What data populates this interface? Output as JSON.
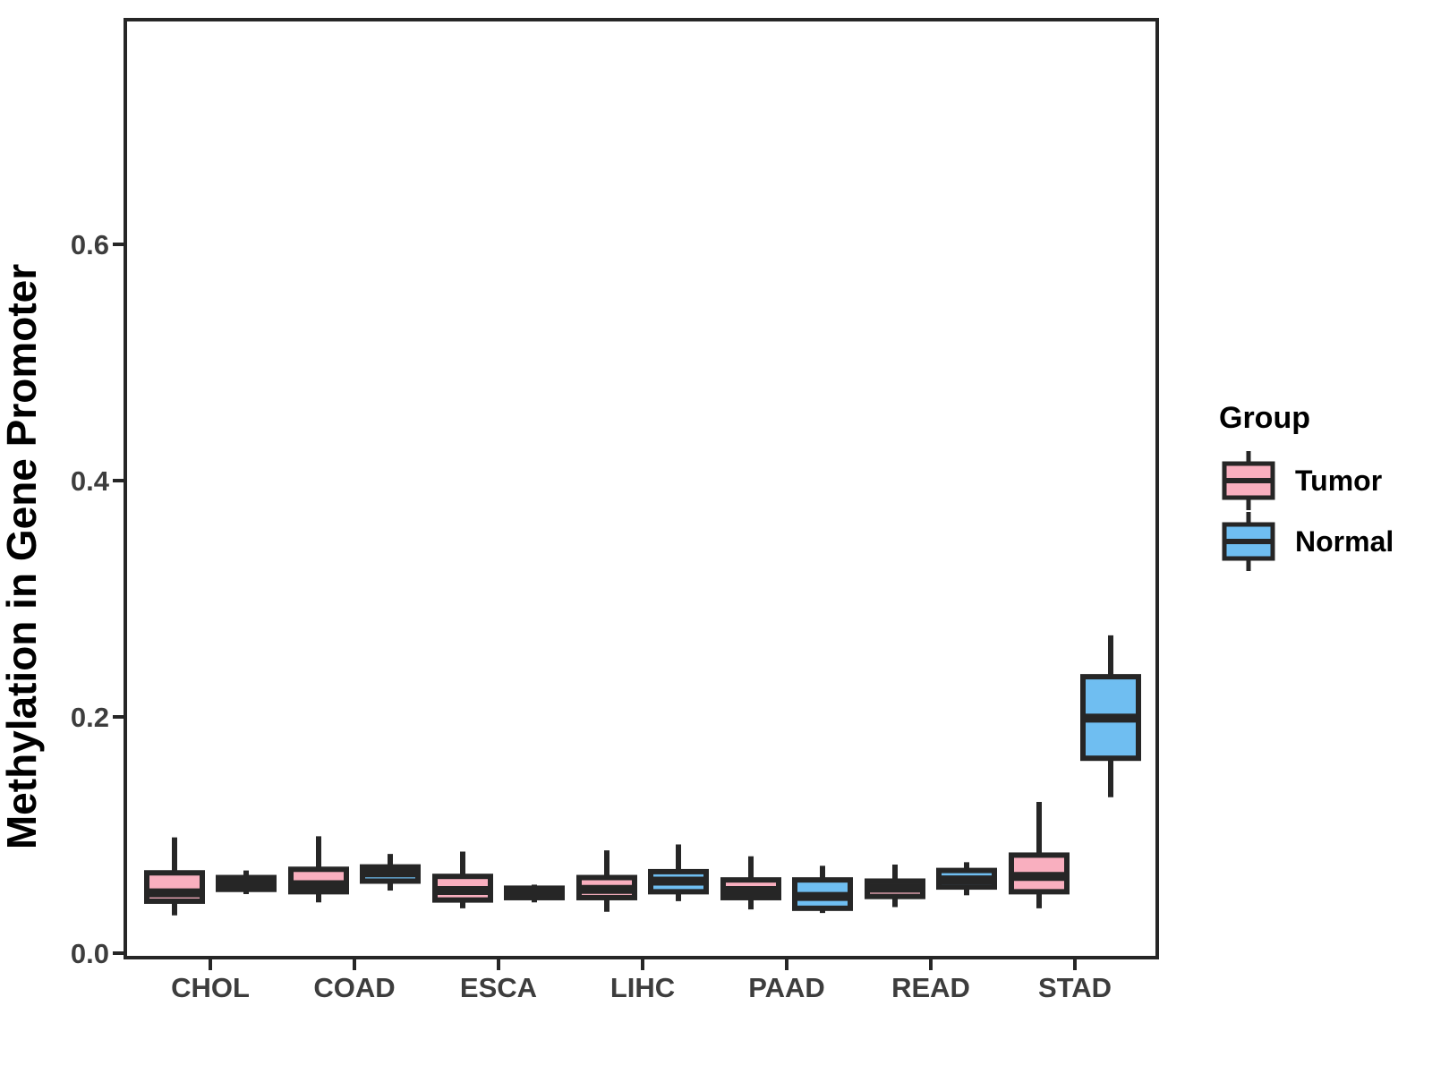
{
  "chart_data": {
    "type": "boxplot",
    "title": "",
    "xlabel": "",
    "ylabel": "Methylation in Gene Promoter",
    "categories": [
      "CHOL",
      "COAD",
      "ESCA",
      "LIHC",
      "PAAD",
      "READ",
      "STAD"
    ],
    "y_ticks": [
      {
        "label": "0.0",
        "value": 0.0
      },
      {
        "label": "0.2",
        "value": 0.2
      },
      {
        "label": "0.4",
        "value": 0.4
      },
      {
        "label": "0.6",
        "value": 0.6
      }
    ],
    "ylim": [
      0.0,
      0.79
    ],
    "grid": "off",
    "legend": {
      "title": "Group",
      "position": "right",
      "entries": [
        {
          "label": "Tumor",
          "fill": "#F9AFBF"
        },
        {
          "label": "Normal",
          "fill": "#6FBEF1"
        }
      ]
    },
    "series": [
      {
        "name": "Tumor",
        "fill": "#F9AFBF",
        "boxes": [
          {
            "category": "CHOL",
            "min": 0.032,
            "q1": 0.044,
            "median": 0.051,
            "q3": 0.068,
            "max": 0.098
          },
          {
            "category": "COAD",
            "min": 0.043,
            "q1": 0.052,
            "median": 0.058,
            "q3": 0.071,
            "max": 0.099
          },
          {
            "category": "ESCA",
            "min": 0.038,
            "q1": 0.045,
            "median": 0.053,
            "q3": 0.065,
            "max": 0.086
          },
          {
            "category": "LIHC",
            "min": 0.035,
            "q1": 0.047,
            "median": 0.054,
            "q3": 0.064,
            "max": 0.087
          },
          {
            "category": "PAAD",
            "min": 0.037,
            "q1": 0.047,
            "median": 0.053,
            "q3": 0.062,
            "max": 0.082
          },
          {
            "category": "READ",
            "min": 0.039,
            "q1": 0.048,
            "median": 0.055,
            "q3": 0.061,
            "max": 0.075
          },
          {
            "category": "STAD",
            "min": 0.038,
            "q1": 0.052,
            "median": 0.065,
            "q3": 0.083,
            "max": 0.128
          }
        ]
      },
      {
        "name": "Normal",
        "fill": "#6FBEF1",
        "boxes": [
          {
            "category": "CHOL",
            "min": 0.05,
            "q1": 0.054,
            "median": 0.059,
            "q3": 0.064,
            "max": 0.07
          },
          {
            "category": "COAD",
            "min": 0.053,
            "q1": 0.061,
            "median": 0.068,
            "q3": 0.073,
            "max": 0.084
          },
          {
            "category": "ESCA",
            "min": 0.043,
            "q1": 0.047,
            "median": 0.05,
            "q3": 0.055,
            "max": 0.058
          },
          {
            "category": "LIHC",
            "min": 0.044,
            "q1": 0.052,
            "median": 0.061,
            "q3": 0.069,
            "max": 0.092
          },
          {
            "category": "PAAD",
            "min": 0.034,
            "q1": 0.038,
            "median": 0.048,
            "q3": 0.062,
            "max": 0.074
          },
          {
            "category": "READ",
            "min": 0.049,
            "q1": 0.056,
            "median": 0.062,
            "q3": 0.07,
            "max": 0.077
          },
          {
            "category": "STAD",
            "min": 0.132,
            "q1": 0.165,
            "median": 0.199,
            "q3": 0.234,
            "max": 0.269
          }
        ]
      }
    ],
    "colors": {
      "box_border": "#262626",
      "axis_line": "#262626",
      "tick_text": "#3D3D3D",
      "title_text": "#000000",
      "panel_bg": "#ffffff"
    }
  }
}
